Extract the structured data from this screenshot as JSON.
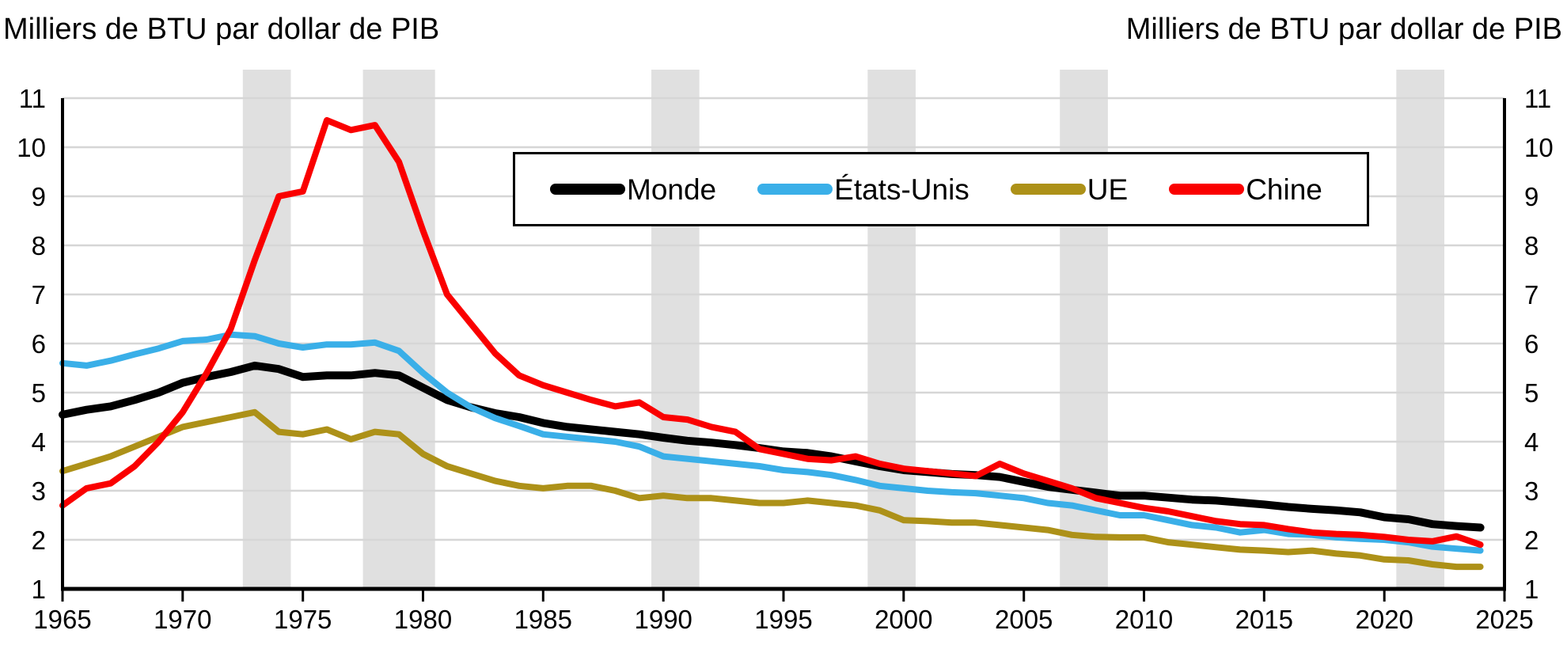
{
  "titles": {
    "left": "Milliers de BTU par dollar de PIB",
    "right": "Milliers de BTU par dollar de PIB"
  },
  "chart_data": {
    "type": "line",
    "title": "",
    "xlabel": "",
    "ylabel_left": "Milliers de BTU par dollar de PIB",
    "ylabel_right": "Milliers de BTU par dollar de PIB",
    "xlim": [
      1965,
      2025
    ],
    "ylim": [
      1,
      11
    ],
    "x_ticks": [
      1965,
      1970,
      1975,
      1980,
      1985,
      1990,
      1995,
      2000,
      2005,
      2010,
      2015,
      2020,
      2025
    ],
    "y_ticks": [
      1,
      2,
      3,
      4,
      5,
      6,
      7,
      8,
      9,
      10,
      11
    ],
    "grid": true,
    "grid_color": "#D6D6D6",
    "shade_color": "#E0E0E0",
    "axis_color": "#000000",
    "legend_position": "top-center-box",
    "shaded_periods": [
      [
        1972.5,
        1974.5
      ],
      [
        1977.5,
        1980.5
      ],
      [
        1989.5,
        1991.5
      ],
      [
        1998.5,
        2000.5
      ],
      [
        2006.5,
        2008.5
      ],
      [
        2020.5,
        2022.5
      ]
    ],
    "years": [
      1965,
      1966,
      1967,
      1968,
      1969,
      1970,
      1971,
      1972,
      1973,
      1974,
      1975,
      1976,
      1977,
      1978,
      1979,
      1980,
      1981,
      1982,
      1983,
      1984,
      1985,
      1986,
      1987,
      1988,
      1989,
      1990,
      1991,
      1992,
      1993,
      1994,
      1995,
      1996,
      1997,
      1998,
      1999,
      2000,
      2001,
      2002,
      2003,
      2004,
      2005,
      2006,
      2007,
      2008,
      2009,
      2010,
      2011,
      2012,
      2013,
      2014,
      2015,
      2016,
      2017,
      2018,
      2019,
      2020,
      2021,
      2022,
      2023,
      2024
    ],
    "series": [
      {
        "name": "Monde",
        "color": "#000000",
        "line_width": 10,
        "values": [
          4.55,
          4.65,
          4.72,
          4.85,
          5.0,
          5.2,
          5.32,
          5.42,
          5.55,
          5.48,
          5.32,
          5.35,
          5.35,
          5.4,
          5.35,
          5.1,
          4.85,
          4.7,
          4.58,
          4.5,
          4.38,
          4.3,
          4.25,
          4.2,
          4.15,
          4.08,
          4.02,
          3.98,
          3.93,
          3.87,
          3.8,
          3.77,
          3.7,
          3.6,
          3.5,
          3.42,
          3.38,
          3.34,
          3.32,
          3.28,
          3.18,
          3.08,
          3.02,
          2.96,
          2.9,
          2.9,
          2.86,
          2.82,
          2.8,
          2.76,
          2.72,
          2.67,
          2.63,
          2.6,
          2.56,
          2.46,
          2.42,
          2.32,
          2.28,
          2.25
        ]
      },
      {
        "name": "États-Unis",
        "color": "#3AAFE8",
        "line_width": 8,
        "values": [
          5.6,
          5.55,
          5.65,
          5.78,
          5.9,
          6.05,
          6.08,
          6.18,
          6.15,
          6.0,
          5.92,
          5.98,
          5.98,
          6.02,
          5.85,
          5.4,
          5.0,
          4.7,
          4.48,
          4.32,
          4.15,
          4.1,
          4.05,
          4.0,
          3.9,
          3.7,
          3.65,
          3.6,
          3.55,
          3.5,
          3.42,
          3.38,
          3.32,
          3.22,
          3.1,
          3.05,
          3.0,
          2.97,
          2.95,
          2.9,
          2.85,
          2.75,
          2.7,
          2.6,
          2.5,
          2.5,
          2.4,
          2.3,
          2.25,
          2.15,
          2.2,
          2.12,
          2.1,
          2.05,
          2.02,
          2.0,
          1.95,
          1.86,
          1.82,
          1.78
        ]
      },
      {
        "name": "UE",
        "color": "#AD9118",
        "line_width": 8,
        "values": [
          3.4,
          3.55,
          3.7,
          3.9,
          4.1,
          4.3,
          4.4,
          4.5,
          4.6,
          4.2,
          4.15,
          4.25,
          4.05,
          4.2,
          4.15,
          3.75,
          3.5,
          3.35,
          3.2,
          3.1,
          3.05,
          3.1,
          3.1,
          3.0,
          2.85,
          2.9,
          2.85,
          2.85,
          2.8,
          2.75,
          2.75,
          2.8,
          2.75,
          2.7,
          2.6,
          2.4,
          2.38,
          2.35,
          2.35,
          2.3,
          2.25,
          2.2,
          2.1,
          2.06,
          2.05,
          2.05,
          1.95,
          1.9,
          1.85,
          1.8,
          1.78,
          1.75,
          1.78,
          1.72,
          1.68,
          1.6,
          1.58,
          1.5,
          1.45,
          1.45
        ]
      },
      {
        "name": "Chine",
        "color": "#FA0000",
        "line_width": 8,
        "values": [
          2.7,
          3.05,
          3.15,
          3.5,
          4.0,
          4.6,
          5.4,
          6.3,
          7.7,
          9.0,
          9.1,
          10.55,
          10.35,
          10.45,
          9.7,
          8.3,
          7.0,
          6.4,
          5.8,
          5.35,
          5.15,
          5.0,
          4.85,
          4.72,
          4.8,
          4.5,
          4.45,
          4.3,
          4.2,
          3.85,
          3.75,
          3.65,
          3.62,
          3.7,
          3.55,
          3.45,
          3.4,
          3.35,
          3.3,
          3.55,
          3.35,
          3.2,
          3.05,
          2.85,
          2.75,
          2.65,
          2.58,
          2.48,
          2.38,
          2.32,
          2.3,
          2.22,
          2.15,
          2.12,
          2.1,
          2.06,
          2.0,
          1.97,
          2.07,
          1.9
        ]
      }
    ]
  }
}
